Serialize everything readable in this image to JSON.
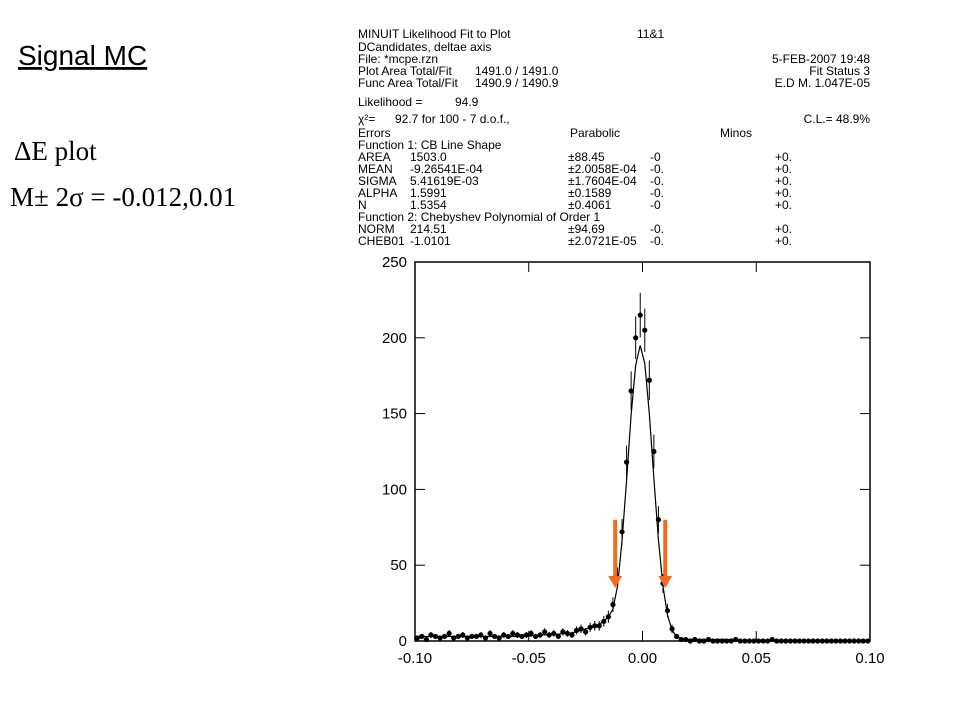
{
  "slide": {
    "title": "Signal MC",
    "lines": [
      "ΔE plot",
      "M± 2σ = -0.012,0.01"
    ]
  },
  "fit_box": {
    "rows": [
      [
        "MINUIT Likelihood Fit to Plot",
        "11&1"
      ],
      [
        "DCandidates, deltae axis"
      ],
      [
        "File: *mcpe.rzn",
        "5-FEB-2007 19:48"
      ],
      [
        "Plot Area Total/Fit",
        "1491.0 / 1491.0",
        "Fit Status  3"
      ],
      [
        "Func Area Total/Fit",
        "1490.9 / 1490.9",
        "E.D M. 1.047E-05"
      ],
      [
        "Likelihood =",
        "94.9"
      ],
      [
        "χ²=",
        "92.7 for 100 -  7 d.o.f.,",
        "C.L.= 48.9%"
      ],
      [
        "Errors",
        "Parabolic",
        "Minos"
      ],
      [
        "Function  1: CB Line Shape"
      ],
      [
        "AREA",
        "1503.0",
        "±88.45",
        "-0",
        "+0."
      ],
      [
        "MEAN",
        "-9.26541E-04",
        "±2.0058E-04",
        "-0.",
        "+0."
      ],
      [
        "SIGMA",
        "5.41619E-03",
        "±1.7604E-04",
        "-0.",
        "+0."
      ],
      [
        "ALPHA",
        "1.5991",
        "±0.1589",
        "-0.",
        "+0."
      ],
      [
        "N",
        "1.5354",
        "±0.4061",
        "-0",
        "+0."
      ],
      [
        "Function  2: Chebyshev Polynomial of Order 1"
      ],
      [
        "NORM",
        "214.51",
        "±94.69",
        "-0.",
        "+0."
      ],
      [
        "CHEB01",
        "-1.0101",
        "±2.0721E-05",
        "-0.",
        "+0."
      ]
    ]
  },
  "chart_data": {
    "type": "scatter",
    "xlim": [
      -0.1,
      0.1
    ],
    "ylim": [
      0,
      250
    ],
    "xticks": [
      {
        "value": -0.1,
        "label": "-0.10"
      },
      {
        "value": -0.05,
        "label": "-0.05"
      },
      {
        "value": 0,
        "label": "0.00"
      },
      {
        "value": 0.05,
        "label": "0.05"
      },
      {
        "value": 0.1,
        "label": "0.10"
      }
    ],
    "yticks": [
      0,
      50,
      100,
      150,
      200,
      250
    ],
    "x": [
      -0.099,
      -0.097,
      -0.095,
      -0.093,
      -0.091,
      -0.089,
      -0.087,
      -0.085,
      -0.083,
      -0.081,
      -0.079,
      -0.077,
      -0.075,
      -0.073,
      -0.071,
      -0.069,
      -0.067,
      -0.065,
      -0.063,
      -0.061,
      -0.059,
      -0.057,
      -0.055,
      -0.053,
      -0.051,
      -0.049,
      -0.047,
      -0.045,
      -0.043,
      -0.041,
      -0.039,
      -0.037,
      -0.035,
      -0.033,
      -0.031,
      -0.029,
      -0.027,
      -0.025,
      -0.023,
      -0.021,
      -0.019,
      -0.017,
      -0.015,
      -0.013,
      -0.011,
      -0.009,
      -0.007,
      -0.005,
      -0.003,
      -0.001,
      0.001,
      0.003,
      0.005,
      0.007,
      0.009,
      0.011,
      0.013,
      0.015,
      0.017,
      0.019,
      0.021,
      0.023,
      0.025,
      0.027,
      0.029,
      0.031,
      0.033,
      0.035,
      0.037,
      0.039,
      0.041,
      0.043,
      0.045,
      0.047,
      0.049,
      0.051,
      0.053,
      0.055,
      0.057,
      0.059,
      0.061,
      0.063,
      0.065,
      0.067,
      0.069,
      0.071,
      0.073,
      0.075,
      0.077,
      0.079,
      0.081,
      0.083,
      0.085,
      0.087,
      0.089,
      0.091,
      0.093,
      0.095,
      0.097,
      0.099
    ],
    "series": [
      {
        "type": "points",
        "color": "#000000",
        "values": [
          2,
          3,
          1,
          4,
          3,
          2,
          3,
          5,
          2,
          3,
          4,
          2,
          3,
          3,
          4,
          2,
          5,
          3,
          2,
          4,
          3,
          5,
          4,
          3,
          4,
          5,
          3,
          4,
          6,
          4,
          5,
          3,
          6,
          5,
          4,
          7,
          8,
          6,
          9,
          10,
          10,
          13,
          16,
          24,
          42,
          72,
          118,
          165,
          200,
          215,
          205,
          172,
          125,
          80,
          38,
          20,
          8,
          3,
          1,
          1,
          0,
          1,
          0,
          0,
          1,
          0,
          0,
          0,
          0,
          0,
          1,
          0,
          0,
          0,
          0,
          0,
          0,
          0,
          1,
          0,
          0,
          0,
          0,
          0,
          0,
          0,
          0,
          0,
          0,
          0,
          0,
          0,
          0,
          0,
          0,
          0,
          0,
          0,
          0,
          0
        ],
        "errors": [
          1.4,
          1.7,
          1,
          2,
          1.7,
          1.4,
          1.7,
          2.2,
          1.4,
          1.7,
          2,
          1.4,
          1.7,
          1.7,
          2,
          1.4,
          2.2,
          1.7,
          1.4,
          2,
          1.7,
          2.2,
          2,
          1.7,
          2,
          2.2,
          1.7,
          2,
          2.4,
          2,
          2.2,
          1.7,
          2.4,
          2.2,
          2,
          2.6,
          2.8,
          2.4,
          3,
          3.2,
          3.2,
          3.6,
          4,
          4.9,
          6.5,
          8.5,
          10.9,
          12.8,
          14.1,
          14.7,
          14.3,
          13.1,
          11.2,
          8.9,
          6.2,
          4.5,
          2.8,
          1.7,
          1,
          1,
          0,
          1,
          0,
          0,
          1,
          0,
          0,
          0,
          0,
          0,
          1,
          0,
          0,
          0,
          0,
          0,
          0,
          0,
          1,
          0,
          0,
          0,
          0,
          0,
          0,
          0,
          0,
          0,
          0,
          0,
          0,
          0,
          0,
          0,
          0,
          0,
          0,
          0,
          0,
          0
        ]
      },
      {
        "type": "line",
        "color": "#000000",
        "values": [
          3,
          3,
          3,
          3,
          3,
          3,
          3,
          3,
          3,
          3,
          3,
          3,
          3,
          3,
          3,
          3,
          3,
          3,
          3,
          3,
          3,
          3,
          3,
          3,
          3,
          3.5,
          3.5,
          4,
          4,
          4,
          4.5,
          4.5,
          5,
          5,
          5.5,
          6,
          7,
          8,
          9,
          10,
          11,
          13,
          16,
          21,
          36,
          66,
          106,
          149,
          182,
          195,
          183,
          150,
          107,
          67,
          36,
          17,
          7,
          3,
          1.5,
          1,
          1,
          1,
          1,
          1,
          1,
          1,
          1,
          1,
          1,
          1,
          1,
          0.5,
          0.5,
          0.5,
          0.5,
          0.5,
          0.5,
          0.5,
          0.5,
          0.5,
          0.5,
          0.5,
          0.5,
          0.5,
          0.5,
          0.5,
          0.2,
          0.2,
          0.2,
          0.2,
          0.2,
          0.2,
          0.2,
          0.2,
          0.2,
          0.2,
          0.2,
          0.2,
          0.2,
          0.2
        ]
      }
    ],
    "arrows": [
      {
        "x": -0.012,
        "y_from": 80,
        "y_to": 35,
        "color": "#f26b1d"
      },
      {
        "x": 0.01,
        "y_from": 80,
        "y_to": 35,
        "color": "#f26b1d"
      }
    ]
  }
}
